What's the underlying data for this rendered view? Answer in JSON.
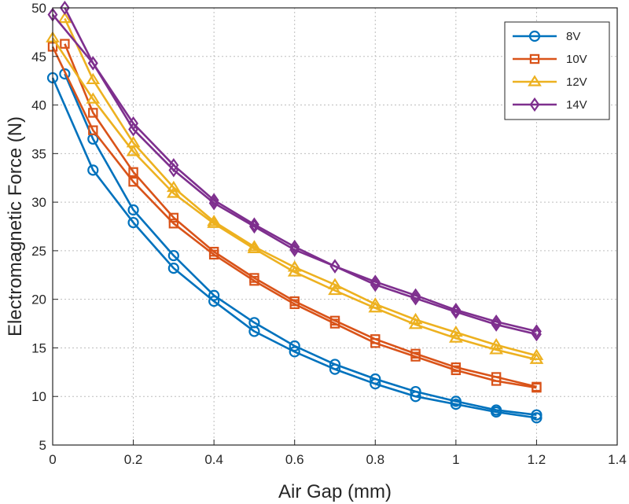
{
  "chart_data": {
    "type": "line",
    "xlabel": "Air Gap (mm)",
    "ylabel": "Electromagnetic Force (N)",
    "xlim": [
      0,
      1.4
    ],
    "ylim": [
      5,
      50
    ],
    "xticks": [
      0,
      0.2,
      0.4,
      0.6,
      0.8,
      1,
      1.2,
      1.4
    ],
    "xtick_labels": [
      "0",
      "0.2",
      "0.4",
      "0.6",
      "0.8",
      "1",
      "1.2",
      "1.4"
    ],
    "yticks": [
      5,
      10,
      15,
      20,
      25,
      30,
      35,
      40,
      45,
      50
    ],
    "ytick_labels": [
      "5",
      "10",
      "15",
      "20",
      "25",
      "30",
      "35",
      "40",
      "45",
      "50"
    ],
    "grid": true,
    "legend_position": "top-right",
    "series": [
      {
        "name": "8V",
        "color": "#0072BD",
        "marker": "circle",
        "curves": [
          {
            "x": [
              0,
              0.1,
              0.2,
              0.3,
              0.4,
              0.5,
              0.6,
              0.7,
              0.8,
              0.9,
              1,
              1.1,
              1.2
            ],
            "y": [
              42.8,
              33.3,
              27.9,
              23.2,
              19.8,
              16.7,
              14.6,
              12.8,
              11.3,
              10.0,
              9.2,
              8.4,
              7.8
            ]
          },
          {
            "x": [
              0.03,
              0.1,
              0.2,
              0.3,
              0.4,
              0.5,
              0.6,
              0.7,
              0.8,
              0.9,
              1,
              1.1,
              1.2
            ],
            "y": [
              43.2,
              36.5,
              29.2,
              24.5,
              20.4,
              17.6,
              15.2,
              13.3,
              11.8,
              10.5,
              9.5,
              8.6,
              8.1
            ]
          }
        ]
      },
      {
        "name": "10V",
        "color": "#D95319",
        "marker": "square",
        "curves": [
          {
            "x": [
              0,
              0.1,
              0.2,
              0.3,
              0.4,
              0.5,
              0.6,
              0.7,
              0.8,
              0.9,
              1,
              1.1,
              1.2
            ],
            "y": [
              46.0,
              37.4,
              32.1,
              27.8,
              24.6,
              21.9,
              19.5,
              17.5,
              15.5,
              14.1,
              12.7,
              11.6,
              10.9
            ]
          },
          {
            "x": [
              0.03,
              0.1,
              0.2,
              0.3,
              0.4,
              0.5,
              0.6,
              0.7,
              0.8,
              0.9,
              1,
              1.1,
              1.2
            ],
            "y": [
              46.3,
              39.2,
              33.1,
              28.4,
              24.9,
              22.2,
              19.8,
              17.8,
              15.9,
              14.4,
              13.0,
              12.0,
              11.0
            ]
          }
        ]
      },
      {
        "name": "12V",
        "color": "#EDB120",
        "marker": "triangle",
        "curves": [
          {
            "x": [
              0,
              0.1,
              0.2,
              0.3,
              0.4,
              0.5,
              0.6,
              0.7,
              0.8,
              0.9,
              1,
              1.1,
              1.2
            ],
            "y": [
              46.9,
              40.6,
              35.2,
              30.9,
              27.8,
              25.2,
              22.8,
              20.9,
              19.1,
              17.4,
              16.0,
              14.8,
              13.8
            ]
          },
          {
            "x": [
              0.03,
              0.1,
              0.2,
              0.3,
              0.4,
              0.5,
              0.6,
              0.7,
              0.8,
              0.9,
              1,
              1.1,
              1.2
            ],
            "y": [
              48.9,
              42.6,
              36.1,
              31.5,
              28.0,
              25.4,
              23.3,
              21.5,
              19.5,
              17.9,
              16.6,
              15.3,
              14.2
            ]
          }
        ]
      },
      {
        "name": "14V",
        "color": "#7E2F8E",
        "marker": "diamond",
        "curves": [
          {
            "x": [
              0,
              0.1,
              0.2,
              0.3,
              0.4,
              0.5,
              0.6,
              0.7,
              0.8,
              0.9,
              1,
              1.1,
              1.2
            ],
            "y": [
              49.3,
              44.3,
              37.5,
              33.3,
              29.9,
              27.5,
              25.1,
              23.4,
              21.5,
              20.1,
              18.7,
              17.4,
              16.4
            ]
          },
          {
            "x": [
              0.03,
              0.1,
              0.2,
              0.3,
              0.4,
              0.5,
              0.6,
              0.7,
              0.8,
              0.9,
              1,
              1.1,
              1.2
            ],
            "y": [
              50.0,
              44.3,
              38.1,
              33.8,
              30.2,
              27.7,
              25.4,
              23.4,
              21.8,
              20.4,
              18.9,
              17.7,
              16.7
            ]
          }
        ]
      }
    ]
  }
}
